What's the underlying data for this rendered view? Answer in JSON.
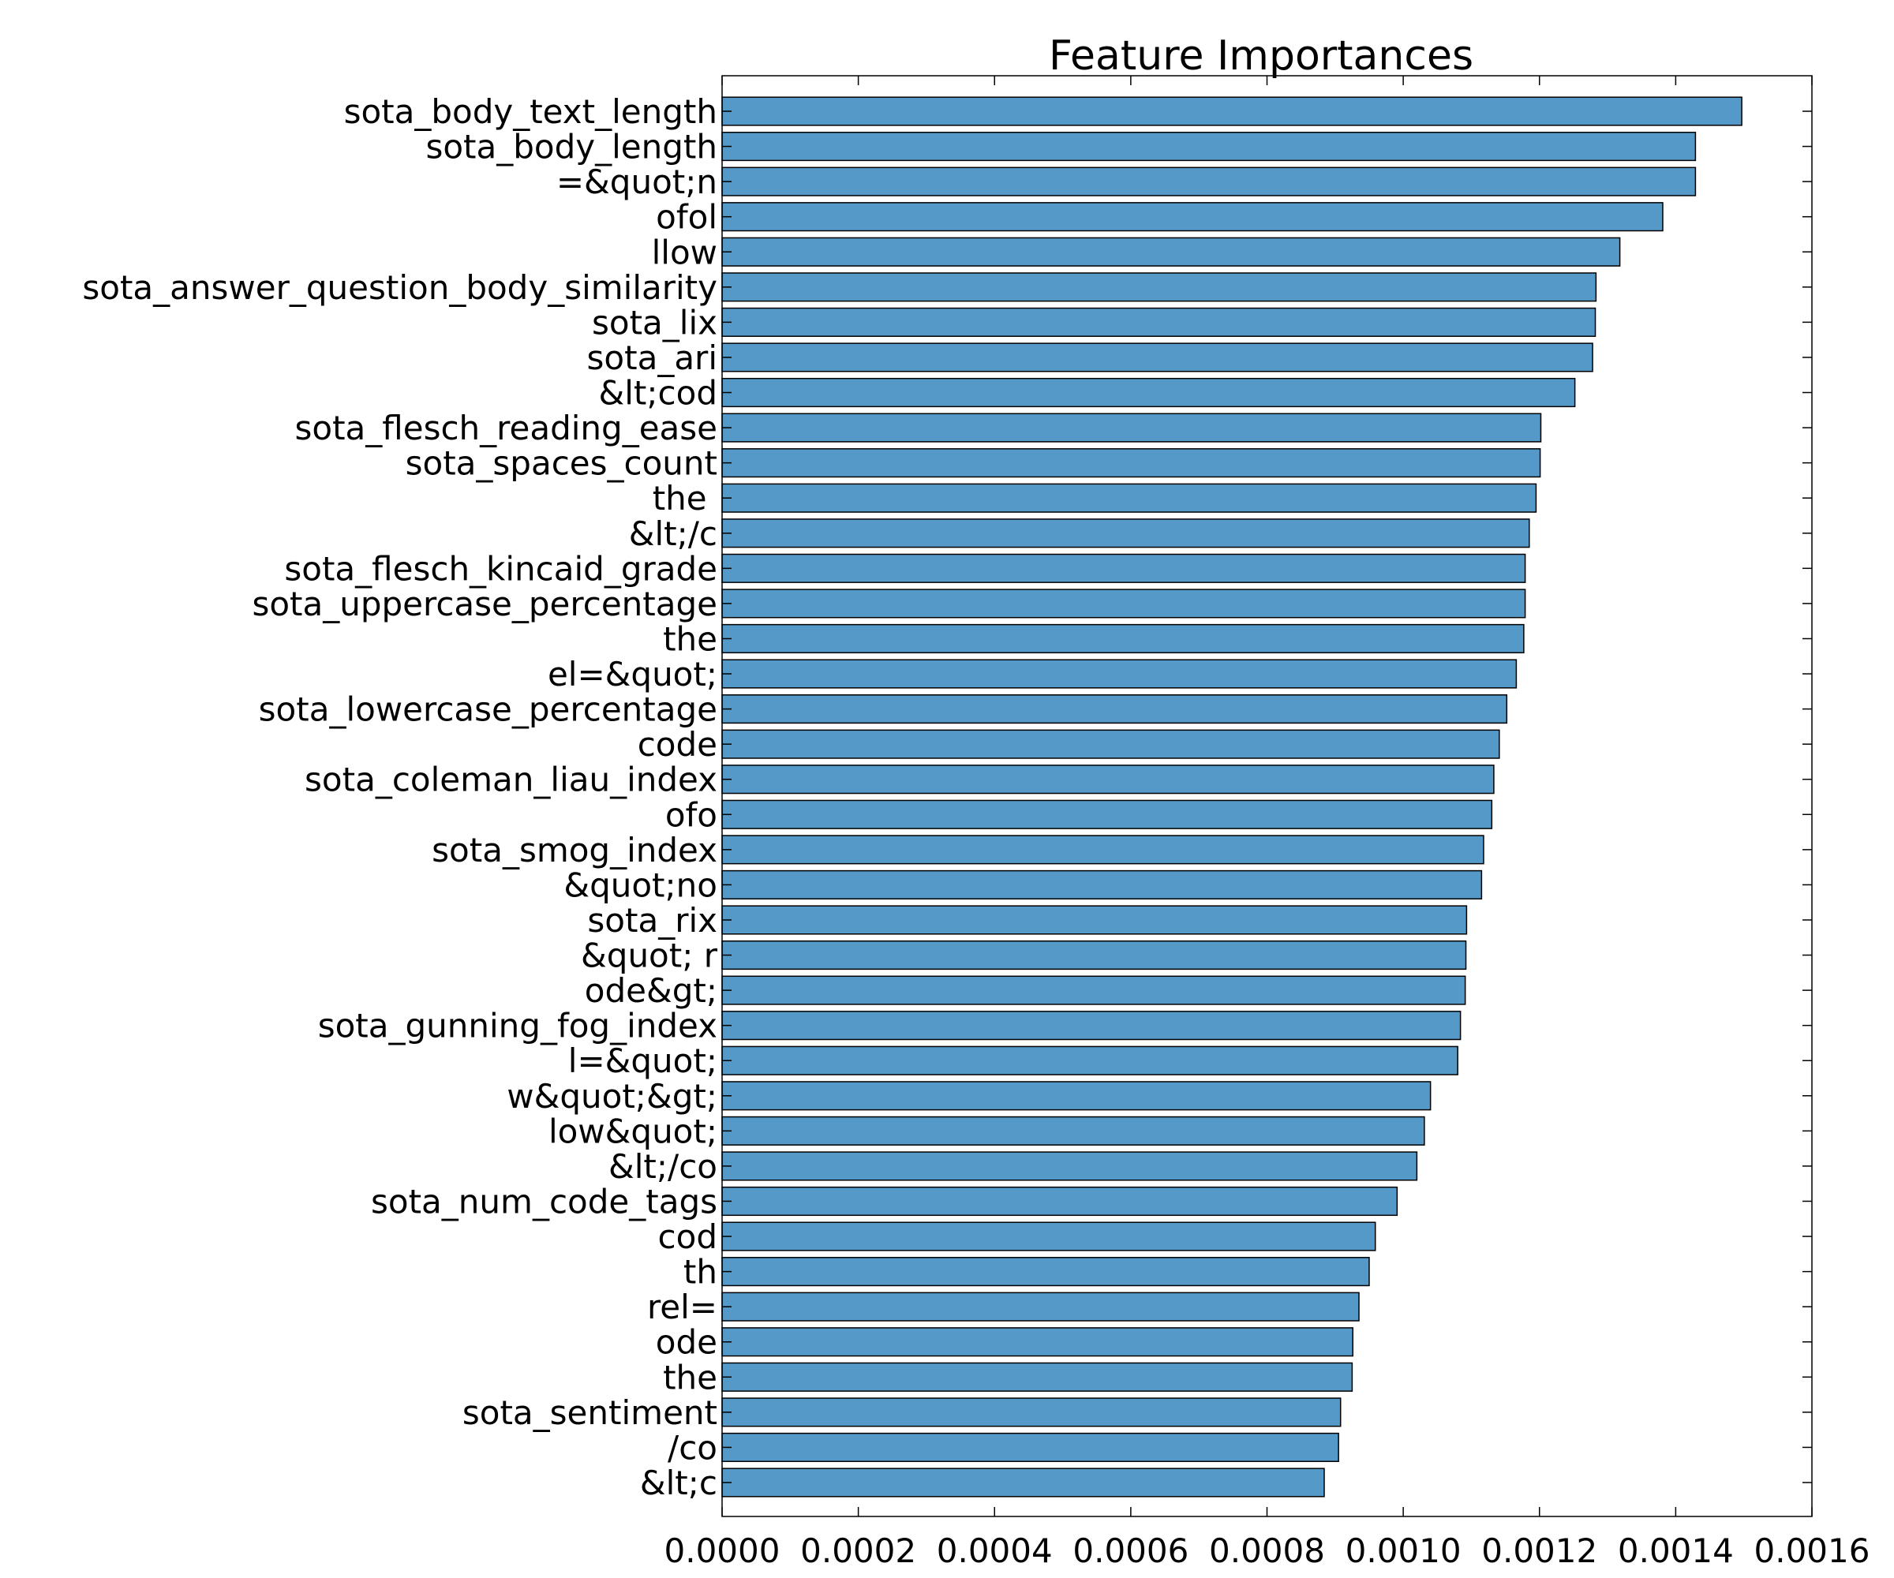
{
  "chart_data": {
    "type": "bar",
    "orientation": "horizontal",
    "title": "Feature Importances",
    "xlabel": "",
    "ylabel": "",
    "xlim": [
      0,
      0.0016
    ],
    "xticks": [
      "0.0000",
      "0.0002",
      "0.0004",
      "0.0006",
      "0.0008",
      "0.0010",
      "0.0012",
      "0.0014",
      "0.0016"
    ],
    "xtick_values": [
      0,
      0.0002,
      0.0004,
      0.0006,
      0.0008,
      0.001,
      0.0012,
      0.0014,
      0.0016
    ],
    "grid": false,
    "bar_color": "#5499c7",
    "categories": [
      "sota_body_text_length",
      "sota_body_length",
      "=&quot;n",
      "ofol",
      "llow",
      "sota_answer_question_body_similarity",
      "sota_lix",
      "sota_ari",
      "&lt;cod",
      "sota_flesch_reading_ease",
      "sota_spaces_count",
      "the ",
      "&lt;/c",
      "sota_flesch_kincaid_grade",
      "sota_uppercase_percentage",
      "the",
      "el=&quot;",
      "sota_lowercase_percentage",
      "code",
      "sota_coleman_liau_index",
      "ofo",
      "sota_smog_index",
      "&quot;no",
      "sota_rix",
      "&quot; r",
      "ode&gt;",
      "sota_gunning_fog_index",
      "l=&quot;",
      "w&quot;&gt;",
      "low&quot;",
      "&lt;/co",
      "sota_num_code_tags",
      "cod",
      "th",
      "rel=",
      "ode",
      "the",
      "sota_sentiment",
      "/co",
      "&lt;c"
    ],
    "values": [
      0.001497,
      0.001429,
      0.001429,
      0.001381,
      0.001318,
      0.001283,
      0.001282,
      0.001278,
      0.001252,
      0.001202,
      0.001201,
      0.001195,
      0.001185,
      0.001179,
      0.001179,
      0.001177,
      0.001166,
      0.001152,
      0.001141,
      0.001133,
      0.00113,
      0.001118,
      0.001115,
      0.001093,
      0.001092,
      0.001091,
      0.001084,
      0.00108,
      0.00104,
      0.001031,
      0.00102,
      0.000991,
      0.000959,
      0.00095,
      0.000935,
      0.000926,
      0.000925,
      0.000908,
      0.000905,
      0.000884
    ]
  }
}
